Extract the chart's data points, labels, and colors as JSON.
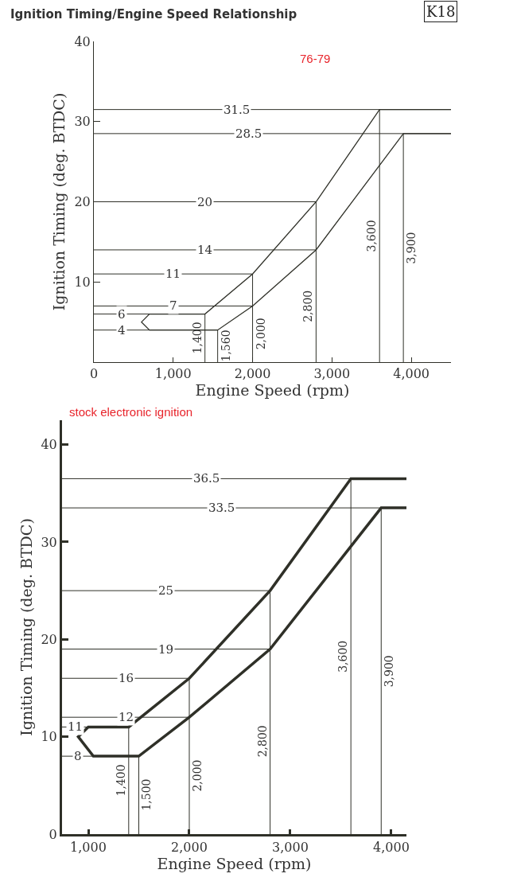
{
  "chart_data": [
    {
      "type": "line",
      "title": "Ignition Timing/Engine Speed Relationship",
      "xlabel": "Engine Speed (rpm)",
      "ylabel": "Ignition Timing (deg. BTDC)",
      "annotations": [
        "K18",
        "76-79"
      ],
      "series": [
        {
          "color": "#2f3028",
          "x": [
            4500,
            3600,
            2800,
            2000,
            1400,
            700,
            600,
            700,
            1560,
            2000,
            2800,
            3900,
            4500
          ],
          "values": [
            31.5,
            31.5,
            20,
            11,
            6,
            6,
            5,
            4,
            4,
            7,
            14,
            28.5,
            28.5
          ]
        }
      ],
      "xlim": [
        0,
        4500
      ],
      "ylim": [
        0,
        40
      ],
      "xticks": [
        {
          "value": 0,
          "label": "0"
        },
        {
          "value": 1000,
          "label": "1,000"
        },
        {
          "value": 2000,
          "label": "2,000"
        },
        {
          "value": 3000,
          "label": "3,000"
        },
        {
          "value": 4000,
          "label": "4,000"
        }
      ],
      "yticks": [
        10,
        20,
        30,
        40
      ],
      "ref_lines": [
        {
          "axis": "y",
          "value": 31.5,
          "label": "31.5"
        },
        {
          "axis": "y",
          "value": 28.5,
          "label": "28.5"
        },
        {
          "axis": "y",
          "value": 20,
          "label": "20"
        },
        {
          "axis": "y",
          "value": 14,
          "label": "14"
        },
        {
          "axis": "y",
          "value": 11,
          "label": "11"
        },
        {
          "axis": "y",
          "value": 7,
          "label": "7"
        },
        {
          "axis": "y",
          "value": 6,
          "label": "6"
        },
        {
          "axis": "y",
          "value": 4,
          "label": "4"
        },
        {
          "axis": "x",
          "value": 1400,
          "label": "1,400"
        },
        {
          "axis": "x",
          "value": 1560,
          "label": "1,560"
        },
        {
          "axis": "x",
          "value": 2000,
          "label": "2,000"
        },
        {
          "axis": "x",
          "value": 2800,
          "label": "2,800"
        },
        {
          "axis": "x",
          "value": 3600,
          "label": "3,600"
        },
        {
          "axis": "x",
          "value": 3900,
          "label": "3,900"
        }
      ],
      "grid": false,
      "marker": "none",
      "line_style": "solid"
    },
    {
      "type": "line",
      "xlabel": "Engine Speed (rpm)",
      "ylabel": "Ignition Timing (deg. BTDC)",
      "annotations": [
        "stock electronic ignition"
      ],
      "series": [
        {
          "color": "#2f3028",
          "x": [
            4150,
            3600,
            2800,
            2000,
            1400,
            1000,
            900,
            1050,
            1500,
            2000,
            2800,
            3900,
            4150
          ],
          "values": [
            36.5,
            36.5,
            25,
            16,
            11,
            11,
            10,
            8,
            8,
            12,
            19,
            33.5,
            33.5
          ]
        }
      ],
      "xlim": [
        740,
        4150
      ],
      "ylim": [
        0,
        42.5
      ],
      "xticks": [
        {
          "value": 1000,
          "label": "1,000"
        },
        {
          "value": 2000,
          "label": "2,000"
        },
        {
          "value": 3000,
          "label": "3,000"
        },
        {
          "value": 4000,
          "label": "4,000"
        }
      ],
      "yticks": [
        0,
        10,
        20,
        30,
        40
      ],
      "ref_lines": [
        {
          "axis": "y",
          "value": 36.5,
          "label": "36.5"
        },
        {
          "axis": "y",
          "value": 33.5,
          "label": "33.5"
        },
        {
          "axis": "y",
          "value": 25,
          "label": "25"
        },
        {
          "axis": "y",
          "value": 19,
          "label": "19"
        },
        {
          "axis": "y",
          "value": 16,
          "label": "16"
        },
        {
          "axis": "y",
          "value": 12,
          "label": "12"
        },
        {
          "axis": "y",
          "value": 11,
          "label": "11"
        },
        {
          "axis": "y",
          "value": 8,
          "label": "8"
        },
        {
          "axis": "x",
          "value": 1400,
          "label": "1,400"
        },
        {
          "axis": "x",
          "value": 1500,
          "label": "1,500"
        },
        {
          "axis": "x",
          "value": 2000,
          "label": "2,000"
        },
        {
          "axis": "x",
          "value": 2800,
          "label": "2,800"
        },
        {
          "axis": "x",
          "value": 3600,
          "label": "3,600"
        },
        {
          "axis": "x",
          "value": 3900,
          "label": "3,900"
        }
      ],
      "grid": false,
      "marker": "none",
      "line_style": "solid"
    }
  ]
}
